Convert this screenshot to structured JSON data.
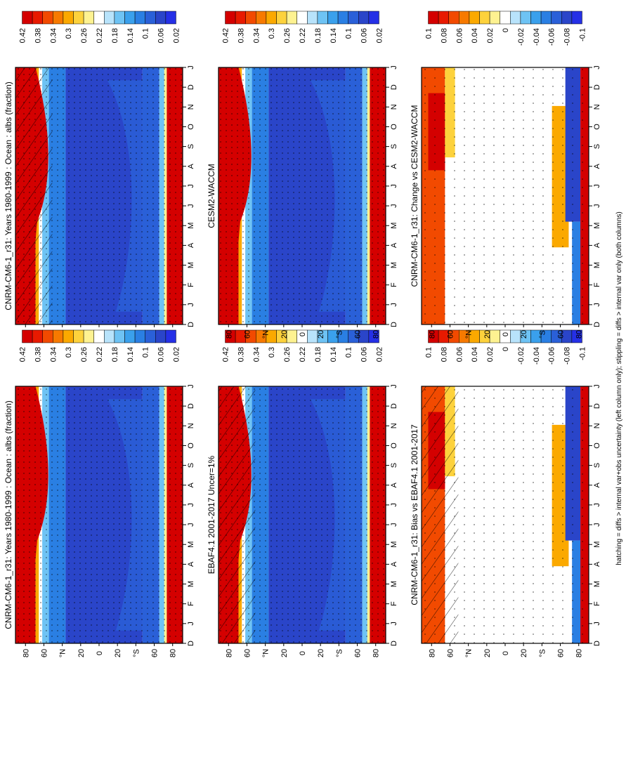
{
  "footnote": "hatching = diffs > internal var+obs uncertainty (left column only); stippling = diffs > internal var only (both columns)",
  "colors": {
    "abs_scale": [
      "#d40000",
      "#e81a00",
      "#f24a00",
      "#f77a00",
      "#fba900",
      "#fdd23c",
      "#fef291",
      "#ffffff",
      "#b8e3fb",
      "#6ec3f4",
      "#3aa0ec",
      "#2a7fe3",
      "#2a60d8",
      "#2a45c9",
      "#2530e6"
    ],
    "diff_scale": [
      "#d40000",
      "#e81a00",
      "#f24a00",
      "#f77a00",
      "#fba900",
      "#fdd23c",
      "#fef291",
      "#ffffff",
      "#b8e3fb",
      "#6ec3f4",
      "#3aa0ec",
      "#2a7fe3",
      "#2a60d8",
      "#2a45c9",
      "#2530e6"
    ],
    "frame": "#000000"
  },
  "chart_data": [
    {
      "type": "heatmap",
      "title": "CNRM-CM6-1_r31: Years 1980-1999 : Ocean : albs (fraction)",
      "x_ticks": [
        "D",
        "J",
        "F",
        "M",
        "A",
        "M",
        "J",
        "J",
        "A",
        "S",
        "O",
        "N",
        "D",
        "J"
      ],
      "y_ticks": [
        "80",
        "60",
        "°N",
        "20",
        "0",
        "20",
        "°S",
        "60",
        "80"
      ],
      "colorbar_labels": [
        "0.42",
        "0.38",
        "0.34",
        "0.3",
        "0.26",
        "0.22",
        "0.18",
        "0.14",
        "0.1",
        "0.06",
        "0.02"
      ],
      "hatching": true,
      "stippling": true,
      "field": "absolute"
    },
    {
      "type": "heatmap",
      "title": "CNRM-CM6-1_r31: Years 1980-1999 : Ocean : albs (fraction)",
      "x_ticks": [
        "D",
        "J",
        "F",
        "M",
        "A",
        "M",
        "J",
        "J",
        "A",
        "S",
        "O",
        "N",
        "D",
        "J"
      ],
      "y_ticks": [
        "80",
        "60",
        "°N",
        "20",
        "0",
        "20",
        "°S",
        "60",
        "80"
      ],
      "colorbar_labels": [
        "0.42",
        "0.38",
        "0.34",
        "0.3",
        "0.26",
        "0.22",
        "0.18",
        "0.14",
        "0.1",
        "0.06",
        "0.02"
      ],
      "hatching": false,
      "stippling": true,
      "field": "absolute"
    },
    {
      "type": "heatmap",
      "title": "EBAF4.1 2001-2017 Uncer=1%",
      "x_ticks": [
        "D",
        "J",
        "F",
        "M",
        "A",
        "M",
        "J",
        "J",
        "A",
        "S",
        "O",
        "N",
        "D",
        "J"
      ],
      "y_ticks": [
        "80",
        "60",
        "°N",
        "20",
        "0",
        "20",
        "°S",
        "60",
        "80"
      ],
      "colorbar_labels": [
        "0.42",
        "0.38",
        "0.34",
        "0.3",
        "0.26",
        "0.22",
        "0.18",
        "0.14",
        "0.1",
        "0.06",
        "0.02"
      ],
      "hatching": true,
      "stippling": true,
      "field": "absolute"
    },
    {
      "type": "heatmap",
      "title": "CESM2-WACCM",
      "x_ticks": [
        "D",
        "J",
        "F",
        "M",
        "A",
        "M",
        "J",
        "J",
        "A",
        "S",
        "O",
        "N",
        "D",
        "J"
      ],
      "y_ticks": [
        "80",
        "60",
        "°N",
        "20",
        "0",
        "20",
        "°S",
        "60",
        "80"
      ],
      "colorbar_labels": [
        "0.42",
        "0.38",
        "0.34",
        "0.3",
        "0.26",
        "0.22",
        "0.18",
        "0.14",
        "0.1",
        "0.06",
        "0.02"
      ],
      "hatching": false,
      "stippling": true,
      "field": "absolute"
    },
    {
      "type": "heatmap",
      "title": "CNRM-CM6-1_r31: Bias vs EBAF4.1 2001-2017",
      "x_ticks": [
        "D",
        "J",
        "F",
        "M",
        "A",
        "M",
        "J",
        "J",
        "A",
        "S",
        "O",
        "N",
        "D",
        "J"
      ],
      "y_ticks": [
        "80",
        "60",
        "°N",
        "20",
        "0",
        "20",
        "°S",
        "60",
        "80"
      ],
      "colorbar_labels": [
        "0.1",
        "0.08",
        "0.06",
        "0.04",
        "0.02",
        "0",
        "-0.02",
        "-0.04",
        "-0.06",
        "-0.08",
        "-0.1"
      ],
      "hatching": true,
      "stippling": true,
      "field": "difference"
    },
    {
      "type": "heatmap",
      "title": "CNRM-CM6-1_r31: Change vs CESM2-WACCM",
      "x_ticks": [
        "D",
        "J",
        "F",
        "M",
        "A",
        "M",
        "J",
        "J",
        "A",
        "S",
        "O",
        "N",
        "D",
        "J"
      ],
      "y_ticks": [
        "80",
        "60",
        "°N",
        "20",
        "0",
        "20",
        "°S",
        "60",
        "80"
      ],
      "colorbar_labels": [
        "0.1",
        "0.08",
        "0.06",
        "0.04",
        "0.02",
        "0",
        "-0.02",
        "-0.04",
        "-0.06",
        "-0.08",
        "-0.1"
      ],
      "hatching": false,
      "stippling": true,
      "field": "difference"
    }
  ]
}
